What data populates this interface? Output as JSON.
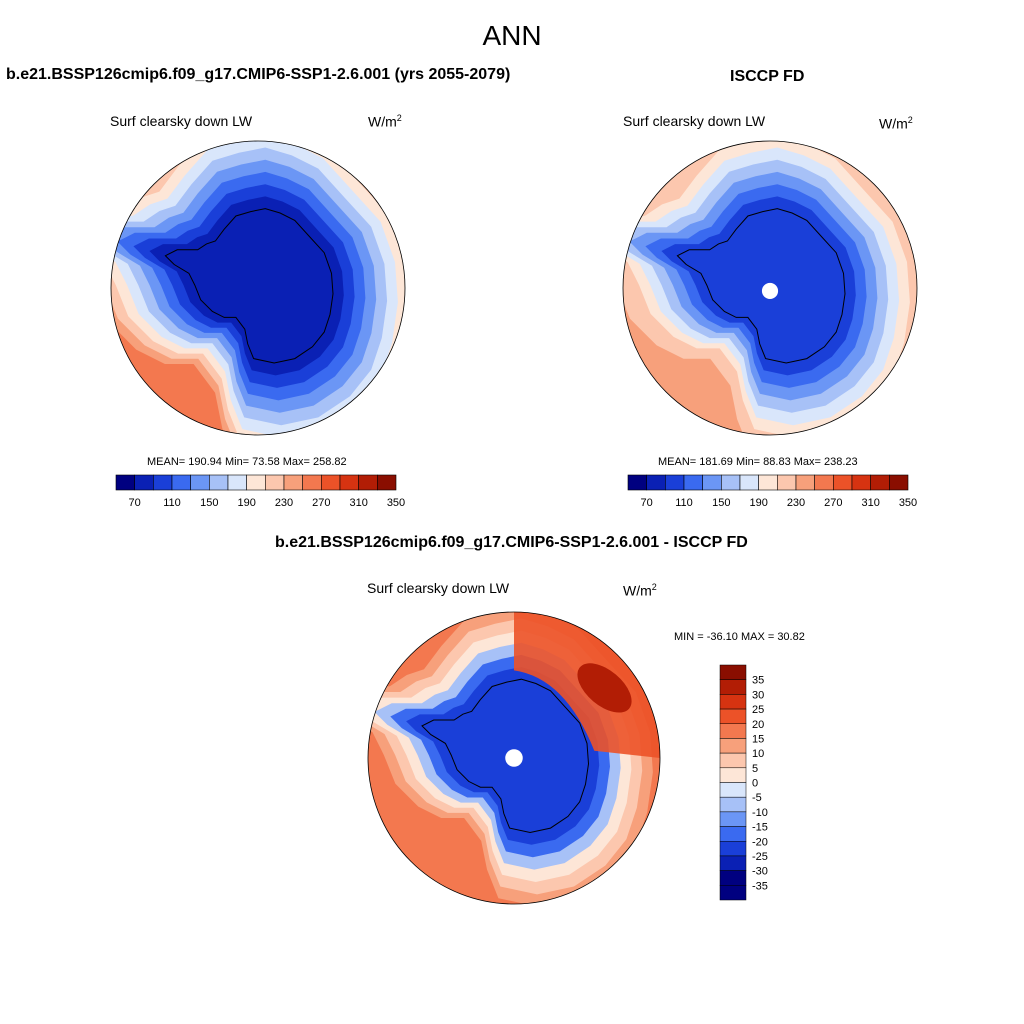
{
  "title": "ANN",
  "colors": {
    "abs_scale": [
      "#000080",
      "#0a20b4",
      "#1a3fd8",
      "#3a6af0",
      "#6b96f5",
      "#a7c1f7",
      "#d9e6fb",
      "#fde6d7",
      "#fcc7ae",
      "#f7a07b",
      "#f3784f",
      "#ec5228",
      "#d63311",
      "#b21d05",
      "#8a0e00"
    ],
    "diff_scale": [
      "#000080",
      "#0a20b4",
      "#1a3fd8",
      "#3a6af0",
      "#6b96f5",
      "#a7c1f7",
      "#d9e6fb",
      "#fde6d7",
      "#fcc7ae",
      "#f7a07b",
      "#f3784f",
      "#ec5228",
      "#d63311",
      "#b21d05",
      "#8a0e00"
    ],
    "coast": "#000000"
  },
  "panels": {
    "model": {
      "title": "b.e21.BSSP126cmip6.f09_g17.CMIP6-SSP1-2.6.001 (yrs 2055-2079)",
      "variable": "Surf clearsky down LW",
      "units": "W/m",
      "units_sup": "2",
      "stats": "MEAN= 190.94  Min=  73.58  Max= 258.82"
    },
    "obs": {
      "title": "ISCCP FD",
      "variable": "Surf clearsky down LW",
      "units": "W/m",
      "units_sup": "2",
      "stats": "MEAN= 181.69  Min=  88.83  Max= 238.23"
    },
    "diff": {
      "title": "b.e21.BSSP126cmip6.f09_g17.CMIP6-SSP1-2.6.001 - ISCCP FD",
      "variable": "Surf clearsky down LW",
      "units": "W/m",
      "units_sup": "2",
      "stats": "MIN = -36.10 MAX =  30.82"
    }
  },
  "colorbars": {
    "abs_ticks": [
      "70",
      "110",
      "150",
      "190",
      "230",
      "270",
      "310",
      "350"
    ],
    "diff_ticks": [
      "35",
      "30",
      "25",
      "20",
      "15",
      "10",
      "5",
      "0",
      "-5",
      "-10",
      "-15",
      "-20",
      "-25",
      "-30",
      "-35"
    ]
  },
  "chart_data": [
    {
      "type": "heatmap",
      "projection": "south polar stereographic",
      "title": "b.e21.BSSP126cmip6.f09_g17.CMIP6-SSP1-2.6.001 (yrs 2055-2079)",
      "variable": "Surf clearsky down LW",
      "units": "W/m2",
      "mean": 190.94,
      "min": 73.58,
      "max": 258.82,
      "contour_levels": [
        50,
        70,
        90,
        110,
        130,
        150,
        170,
        190,
        210,
        230,
        250,
        270,
        290,
        310,
        330,
        350
      ],
      "zones_outer_to_inner": [
        250,
        235,
        220,
        200,
        180,
        160,
        140,
        120,
        100,
        85
      ]
    },
    {
      "type": "heatmap",
      "projection": "south polar stereographic",
      "title": "ISCCP FD",
      "variable": "Surf clearsky down LW",
      "units": "W/m2",
      "mean": 181.69,
      "min": 88.83,
      "max": 238.23,
      "contour_levels": [
        50,
        70,
        90,
        110,
        130,
        150,
        170,
        190,
        210,
        230,
        250,
        270,
        290,
        310,
        330,
        350
      ],
      "zones_outer_to_inner": [
        235,
        225,
        210,
        195,
        180,
        160,
        140,
        120,
        100
      ]
    },
    {
      "type": "heatmap",
      "projection": "south polar stereographic",
      "title": "b.e21.BSSP126cmip6.f09_g17.CMIP6-SSP1-2.6.001 - ISCCP FD",
      "variable": "Surf clearsky down LW",
      "units": "W/m2",
      "min": -36.1,
      "max": 30.82,
      "contour_levels": [
        -35,
        -30,
        -25,
        -20,
        -15,
        -10,
        -5,
        0,
        5,
        10,
        15,
        20,
        25,
        30,
        35
      ],
      "zones_outer_to_inner": [
        17,
        12,
        7,
        2,
        -7,
        -17,
        -22
      ]
    }
  ]
}
